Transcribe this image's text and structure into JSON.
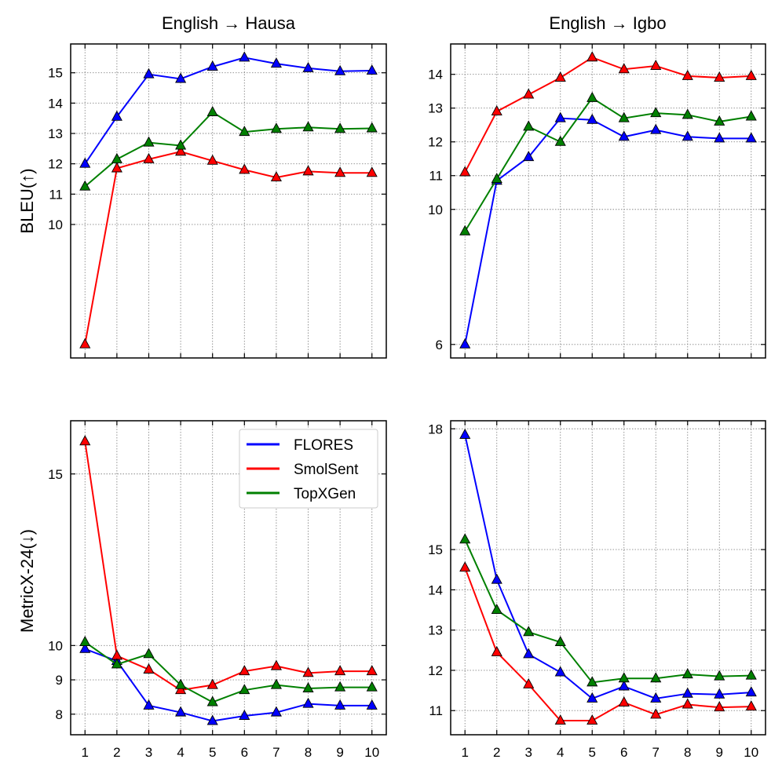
{
  "legend": {
    "placement": "top-right of bottom-left panel",
    "entries": [
      {
        "name": "FLORES",
        "color": "#0000ff"
      },
      {
        "name": "SmolSent",
        "color": "#ff0000"
      },
      {
        "name": "TopXGen",
        "color": "#008000"
      }
    ]
  },
  "chart_data": [
    {
      "type": "line",
      "title": "English → Hausa",
      "xlabel": "",
      "ylabel": "BLEU(↑)",
      "x": [
        1,
        2,
        3,
        4,
        5,
        6,
        7,
        8,
        9,
        10
      ],
      "xticks": [
        "1",
        "2",
        "3",
        "4",
        "5",
        "6",
        "7",
        "8",
        "9",
        "10"
      ],
      "yticks": [
        10,
        11,
        12,
        13,
        14,
        15
      ],
      "ylim": [
        5.6,
        15.95
      ],
      "grid": true,
      "series": [
        {
          "name": "FLORES",
          "color": "#0000ff",
          "values": [
            12.0,
            13.55,
            14.95,
            14.8,
            15.2,
            15.5,
            15.3,
            15.15,
            15.05,
            15.07
          ]
        },
        {
          "name": "SmolSent",
          "color": "#ff0000",
          "values": [
            6.05,
            11.85,
            12.15,
            12.4,
            12.1,
            11.8,
            11.55,
            11.75,
            11.7,
            11.7
          ]
        },
        {
          "name": "TopXGen",
          "color": "#008000",
          "values": [
            11.25,
            12.15,
            12.7,
            12.6,
            13.7,
            13.05,
            13.15,
            13.2,
            13.15,
            13.17
          ]
        }
      ]
    },
    {
      "type": "line",
      "title": "English → Igbo",
      "xlabel": "",
      "ylabel": "",
      "x": [
        1,
        2,
        3,
        4,
        5,
        6,
        7,
        8,
        9,
        10
      ],
      "xticks": [
        "1",
        "2",
        "3",
        "4",
        "5",
        "6",
        "7",
        "8",
        "9",
        "10"
      ],
      "yticks": [
        6,
        10,
        11,
        12,
        13,
        14
      ],
      "ylim": [
        5.6,
        14.9
      ],
      "grid": true,
      "series": [
        {
          "name": "FLORES",
          "color": "#0000ff",
          "values": [
            6.0,
            10.85,
            11.55,
            12.7,
            12.65,
            12.15,
            12.35,
            12.15,
            12.1,
            12.1
          ]
        },
        {
          "name": "SmolSent",
          "color": "#ff0000",
          "values": [
            11.1,
            12.9,
            13.4,
            13.9,
            14.5,
            14.15,
            14.25,
            13.95,
            13.9,
            13.95
          ]
        },
        {
          "name": "TopXGen",
          "color": "#008000",
          "values": [
            9.35,
            10.9,
            12.45,
            12.0,
            13.3,
            12.7,
            12.85,
            12.8,
            12.6,
            12.75
          ]
        }
      ]
    },
    {
      "type": "line",
      "title": "",
      "xlabel": "",
      "ylabel": "MetricX-24(↓)",
      "x": [
        1,
        2,
        3,
        4,
        5,
        6,
        7,
        8,
        9,
        10
      ],
      "xticks": [
        "1",
        "2",
        "3",
        "4",
        "5",
        "6",
        "7",
        "8",
        "9",
        "10"
      ],
      "yticks": [
        8,
        9,
        10,
        15
      ],
      "ylim": [
        7.4,
        16.55
      ],
      "grid": true,
      "series": [
        {
          "name": "FLORES",
          "color": "#0000ff",
          "values": [
            9.9,
            9.55,
            8.25,
            8.05,
            7.8,
            7.95,
            8.05,
            8.3,
            8.25,
            8.25
          ]
        },
        {
          "name": "SmolSent",
          "color": "#ff0000",
          "values": [
            15.95,
            9.7,
            9.3,
            8.7,
            8.85,
            9.25,
            9.4,
            9.2,
            9.25,
            9.25
          ]
        },
        {
          "name": "TopXGen",
          "color": "#008000",
          "values": [
            10.1,
            9.45,
            9.75,
            8.85,
            8.35,
            8.7,
            8.85,
            8.75,
            8.78,
            8.78
          ]
        }
      ]
    },
    {
      "type": "line",
      "title": "",
      "xlabel": "",
      "ylabel": "",
      "x": [
        1,
        2,
        3,
        4,
        5,
        6,
        7,
        8,
        9,
        10
      ],
      "xticks": [
        "1",
        "2",
        "3",
        "4",
        "5",
        "6",
        "7",
        "8",
        "9",
        "10"
      ],
      "yticks": [
        11,
        12,
        13,
        14,
        15,
        18
      ],
      "ylim": [
        10.4,
        18.2
      ],
      "grid": true,
      "series": [
        {
          "name": "FLORES",
          "color": "#0000ff",
          "values": [
            17.85,
            14.25,
            12.4,
            11.95,
            11.3,
            11.6,
            11.3,
            11.42,
            11.4,
            11.45
          ]
        },
        {
          "name": "SmolSent",
          "color": "#ff0000",
          "values": [
            14.55,
            12.45,
            11.65,
            10.75,
            10.75,
            11.2,
            10.9,
            11.15,
            11.08,
            11.1
          ]
        },
        {
          "name": "TopXGen",
          "color": "#008000",
          "values": [
            15.25,
            13.5,
            12.95,
            12.7,
            11.7,
            11.8,
            11.8,
            11.9,
            11.85,
            11.87
          ]
        }
      ]
    }
  ]
}
